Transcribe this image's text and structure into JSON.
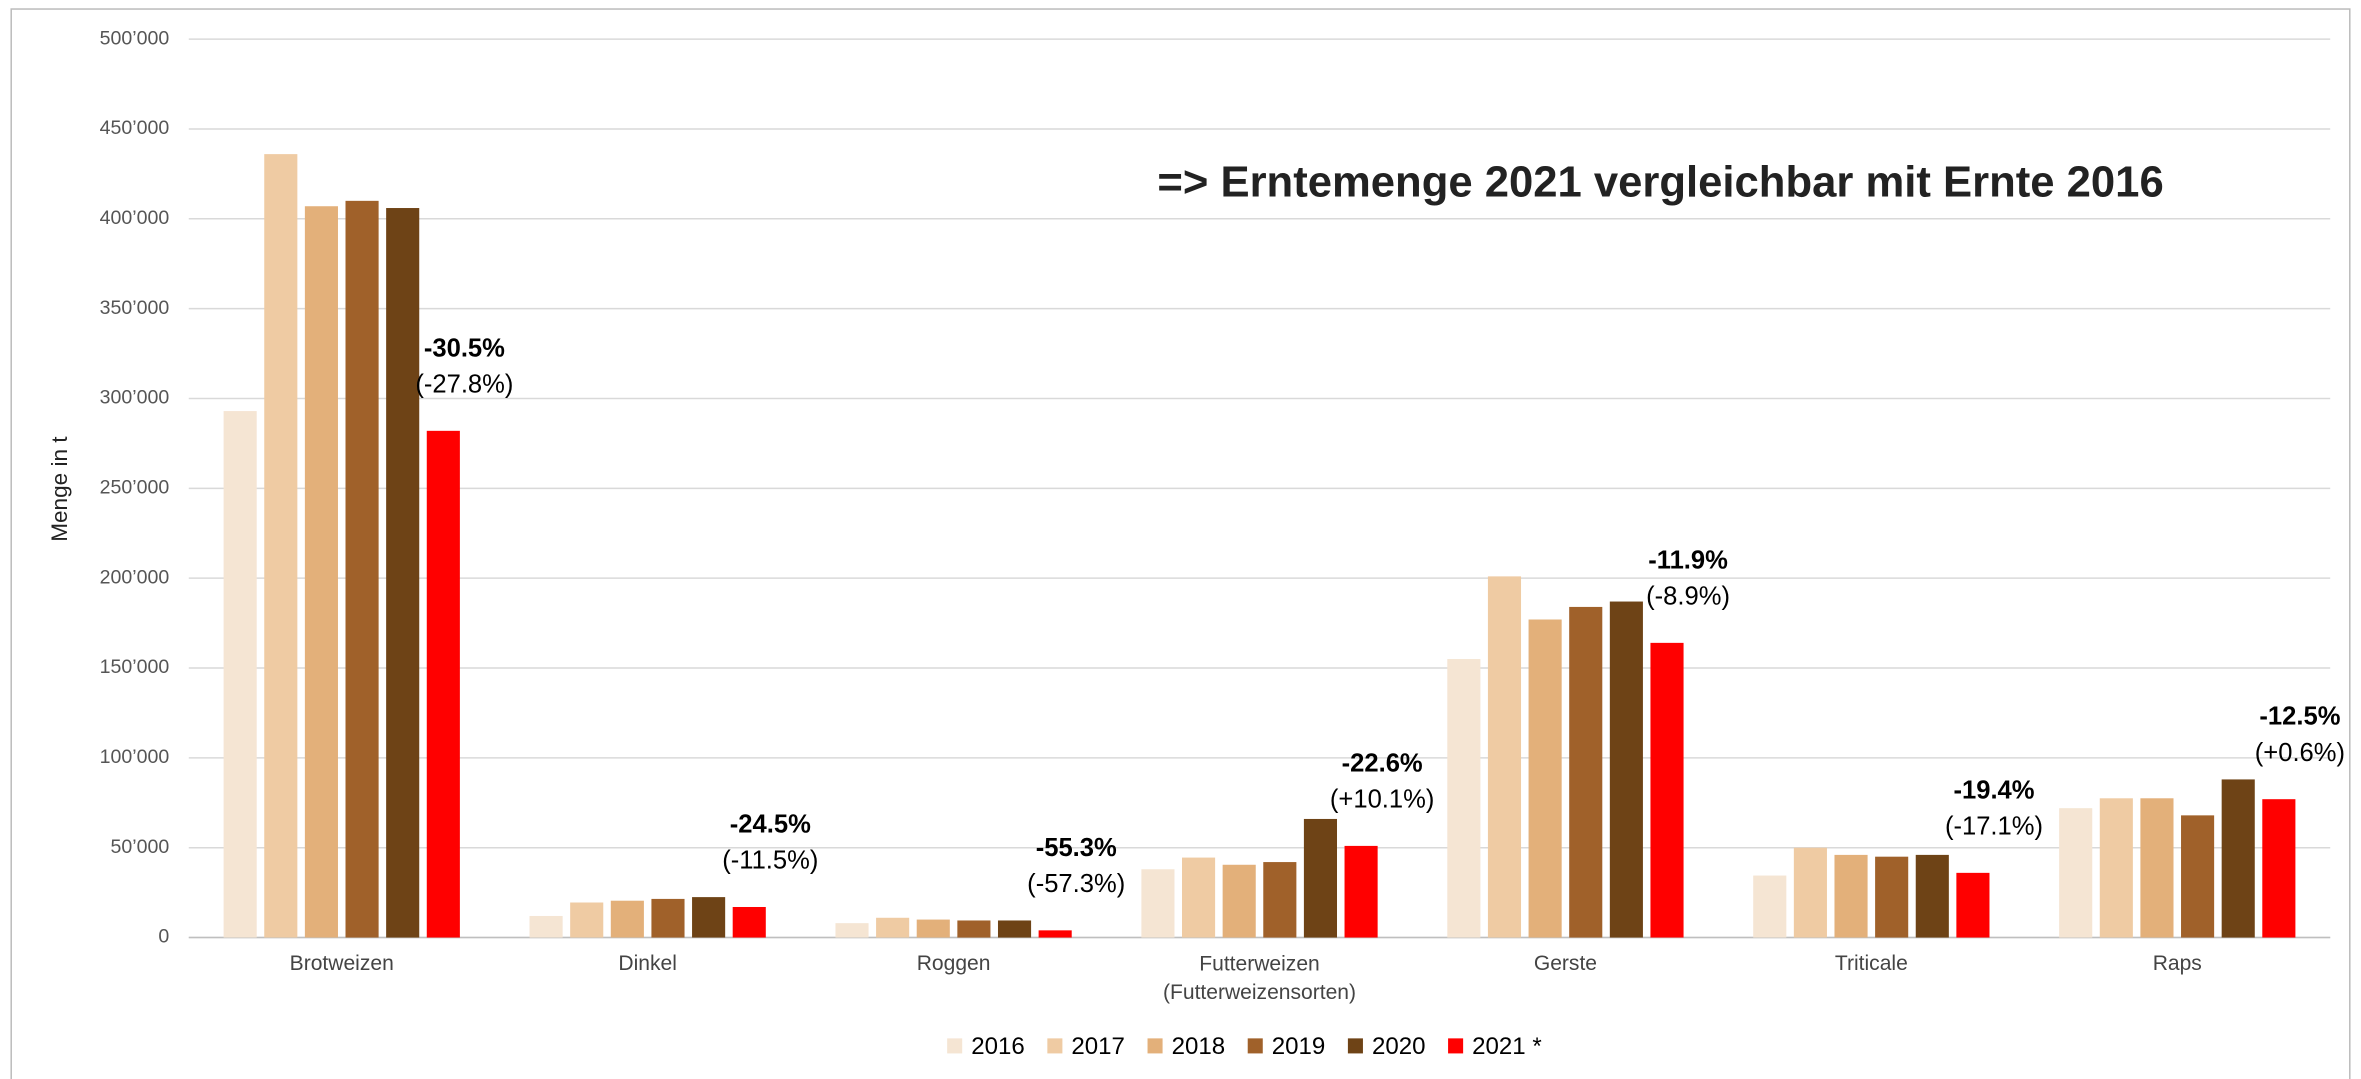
{
  "chart_data": {
    "type": "bar",
    "title": "=> Erntemenge 2021 vergleichbar mit Ernte 2016",
    "ylabel": "Menge in t",
    "categories": [
      "Brotweizen",
      "Dinkel",
      "Roggen",
      "Futterweizen\n(Futterweizensorten)",
      "Gerste",
      "Triticale",
      "Raps"
    ],
    "series": [
      {
        "name": "2016",
        "color": "#f5e5d3",
        "values": [
          293000,
          12000,
          8000,
          38000,
          155000,
          34500,
          72000
        ]
      },
      {
        "name": "2017",
        "color": "#efcba3",
        "values": [
          436000,
          19500,
          11000,
          44500,
          201000,
          50000,
          77500
        ]
      },
      {
        "name": "2018",
        "color": "#e3b07a",
        "values": [
          407000,
          20500,
          10000,
          40500,
          177000,
          46000,
          77500
        ]
      },
      {
        "name": "2019",
        "color": "#a0612a",
        "values": [
          410000,
          21500,
          9500,
          42000,
          184000,
          45000,
          68000
        ]
      },
      {
        "name": "2020",
        "color": "#6e4316",
        "values": [
          406000,
          22500,
          9500,
          66000,
          187000,
          46000,
          88000
        ]
      },
      {
        "name": "2021 *",
        "color": "#ff0000",
        "values": [
          282000,
          17000,
          4000,
          51000,
          164000,
          36000,
          77000
        ]
      }
    ],
    "annotations": [
      {
        "change": "-30.5%",
        "prior": "(-27.8%)"
      },
      {
        "change": "-24.5%",
        "prior": "(-11.5%)"
      },
      {
        "change": "-55.3%",
        "prior": "(-57.3%)"
      },
      {
        "change": "-22.6%",
        "prior": "(+10.1%)"
      },
      {
        "change": "-11.9%",
        "prior": "(-8.9%)"
      },
      {
        "change": "-19.4%",
        "prior": "(-17.1%)"
      },
      {
        "change": "-12.5%",
        "prior": "(+0.6%)"
      }
    ],
    "ylim": [
      0,
      500000
    ],
    "yticks": [
      0,
      {
        "value": 50000,
        "label": "50’000"
      },
      {
        "value": 100000,
        "label": "100’000"
      },
      {
        "value": 150000,
        "label": "150’000"
      },
      {
        "value": 200000,
        "label": "200’000"
      },
      {
        "value": 250000,
        "label": "250’000"
      },
      {
        "value": 300000,
        "label": "300’000"
      },
      {
        "value": 350000,
        "label": "350’000"
      },
      {
        "value": 400000,
        "label": "400’000"
      },
      {
        "value": 450000,
        "label": "450’000"
      },
      {
        "value": 500000,
        "label": "500’000"
      }
    ],
    "grid": true,
    "legend": "bottom"
  }
}
